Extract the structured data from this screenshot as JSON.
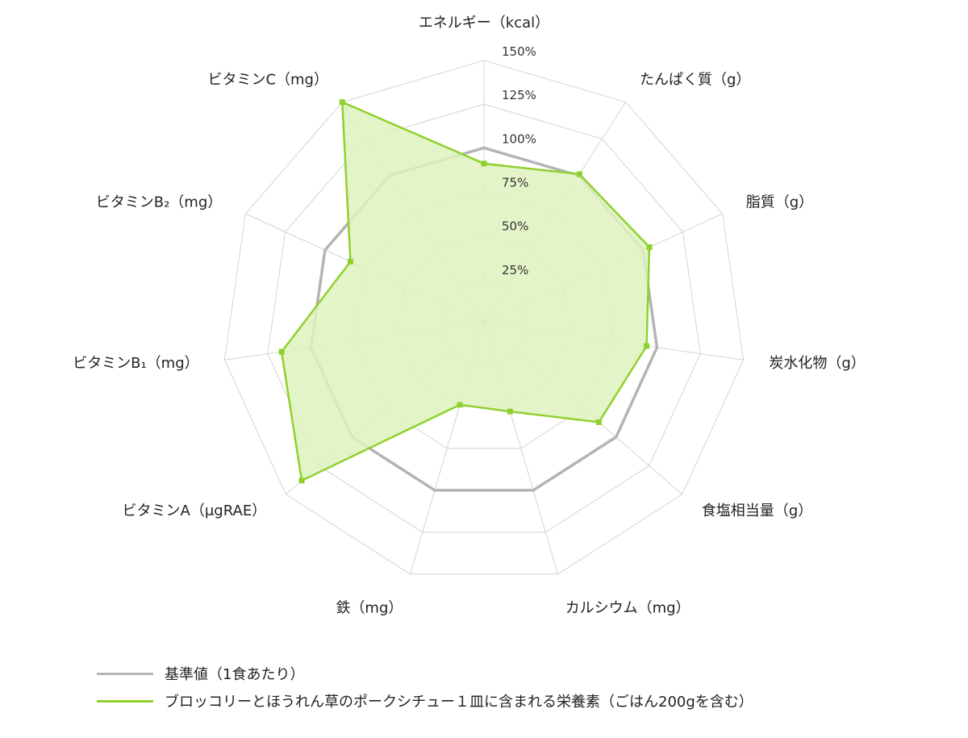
{
  "chart_data": {
    "type": "radar",
    "axes": [
      "エネルギー（kcal）",
      "たんぱく質（g）",
      "脂質（g）",
      "炭水化物（g）",
      "食塩相当量（g）",
      "カルシウム（mg）",
      "鉄（mg）",
      "ビタミンA（μgRAE）",
      "ビタミンB₁（mg）",
      "ビタミンB₂（mg）",
      "ビタミンC（mg）"
    ],
    "ticks": [
      "25%",
      "50%",
      "75%",
      "100%",
      "125%",
      "150%"
    ],
    "range": [
      0,
      150
    ],
    "series": [
      {
        "name": "基準値（1食あたり）",
        "color": "#b4b4b4",
        "values": [
          100,
          100,
          100,
          100,
          100,
          100,
          100,
          100,
          100,
          100,
          100
        ]
      },
      {
        "name": "ブロッコリーとほうれん草のポークシチュー１皿に含まれる栄養素（ごはん200gを含む）",
        "color": "#8fd12c",
        "fill": "#dff2c0",
        "values": [
          91,
          101,
          104,
          94,
          87,
          53,
          49,
          138,
          117,
          84,
          150
        ]
      }
    ],
    "legend_position": "bottom-left"
  }
}
